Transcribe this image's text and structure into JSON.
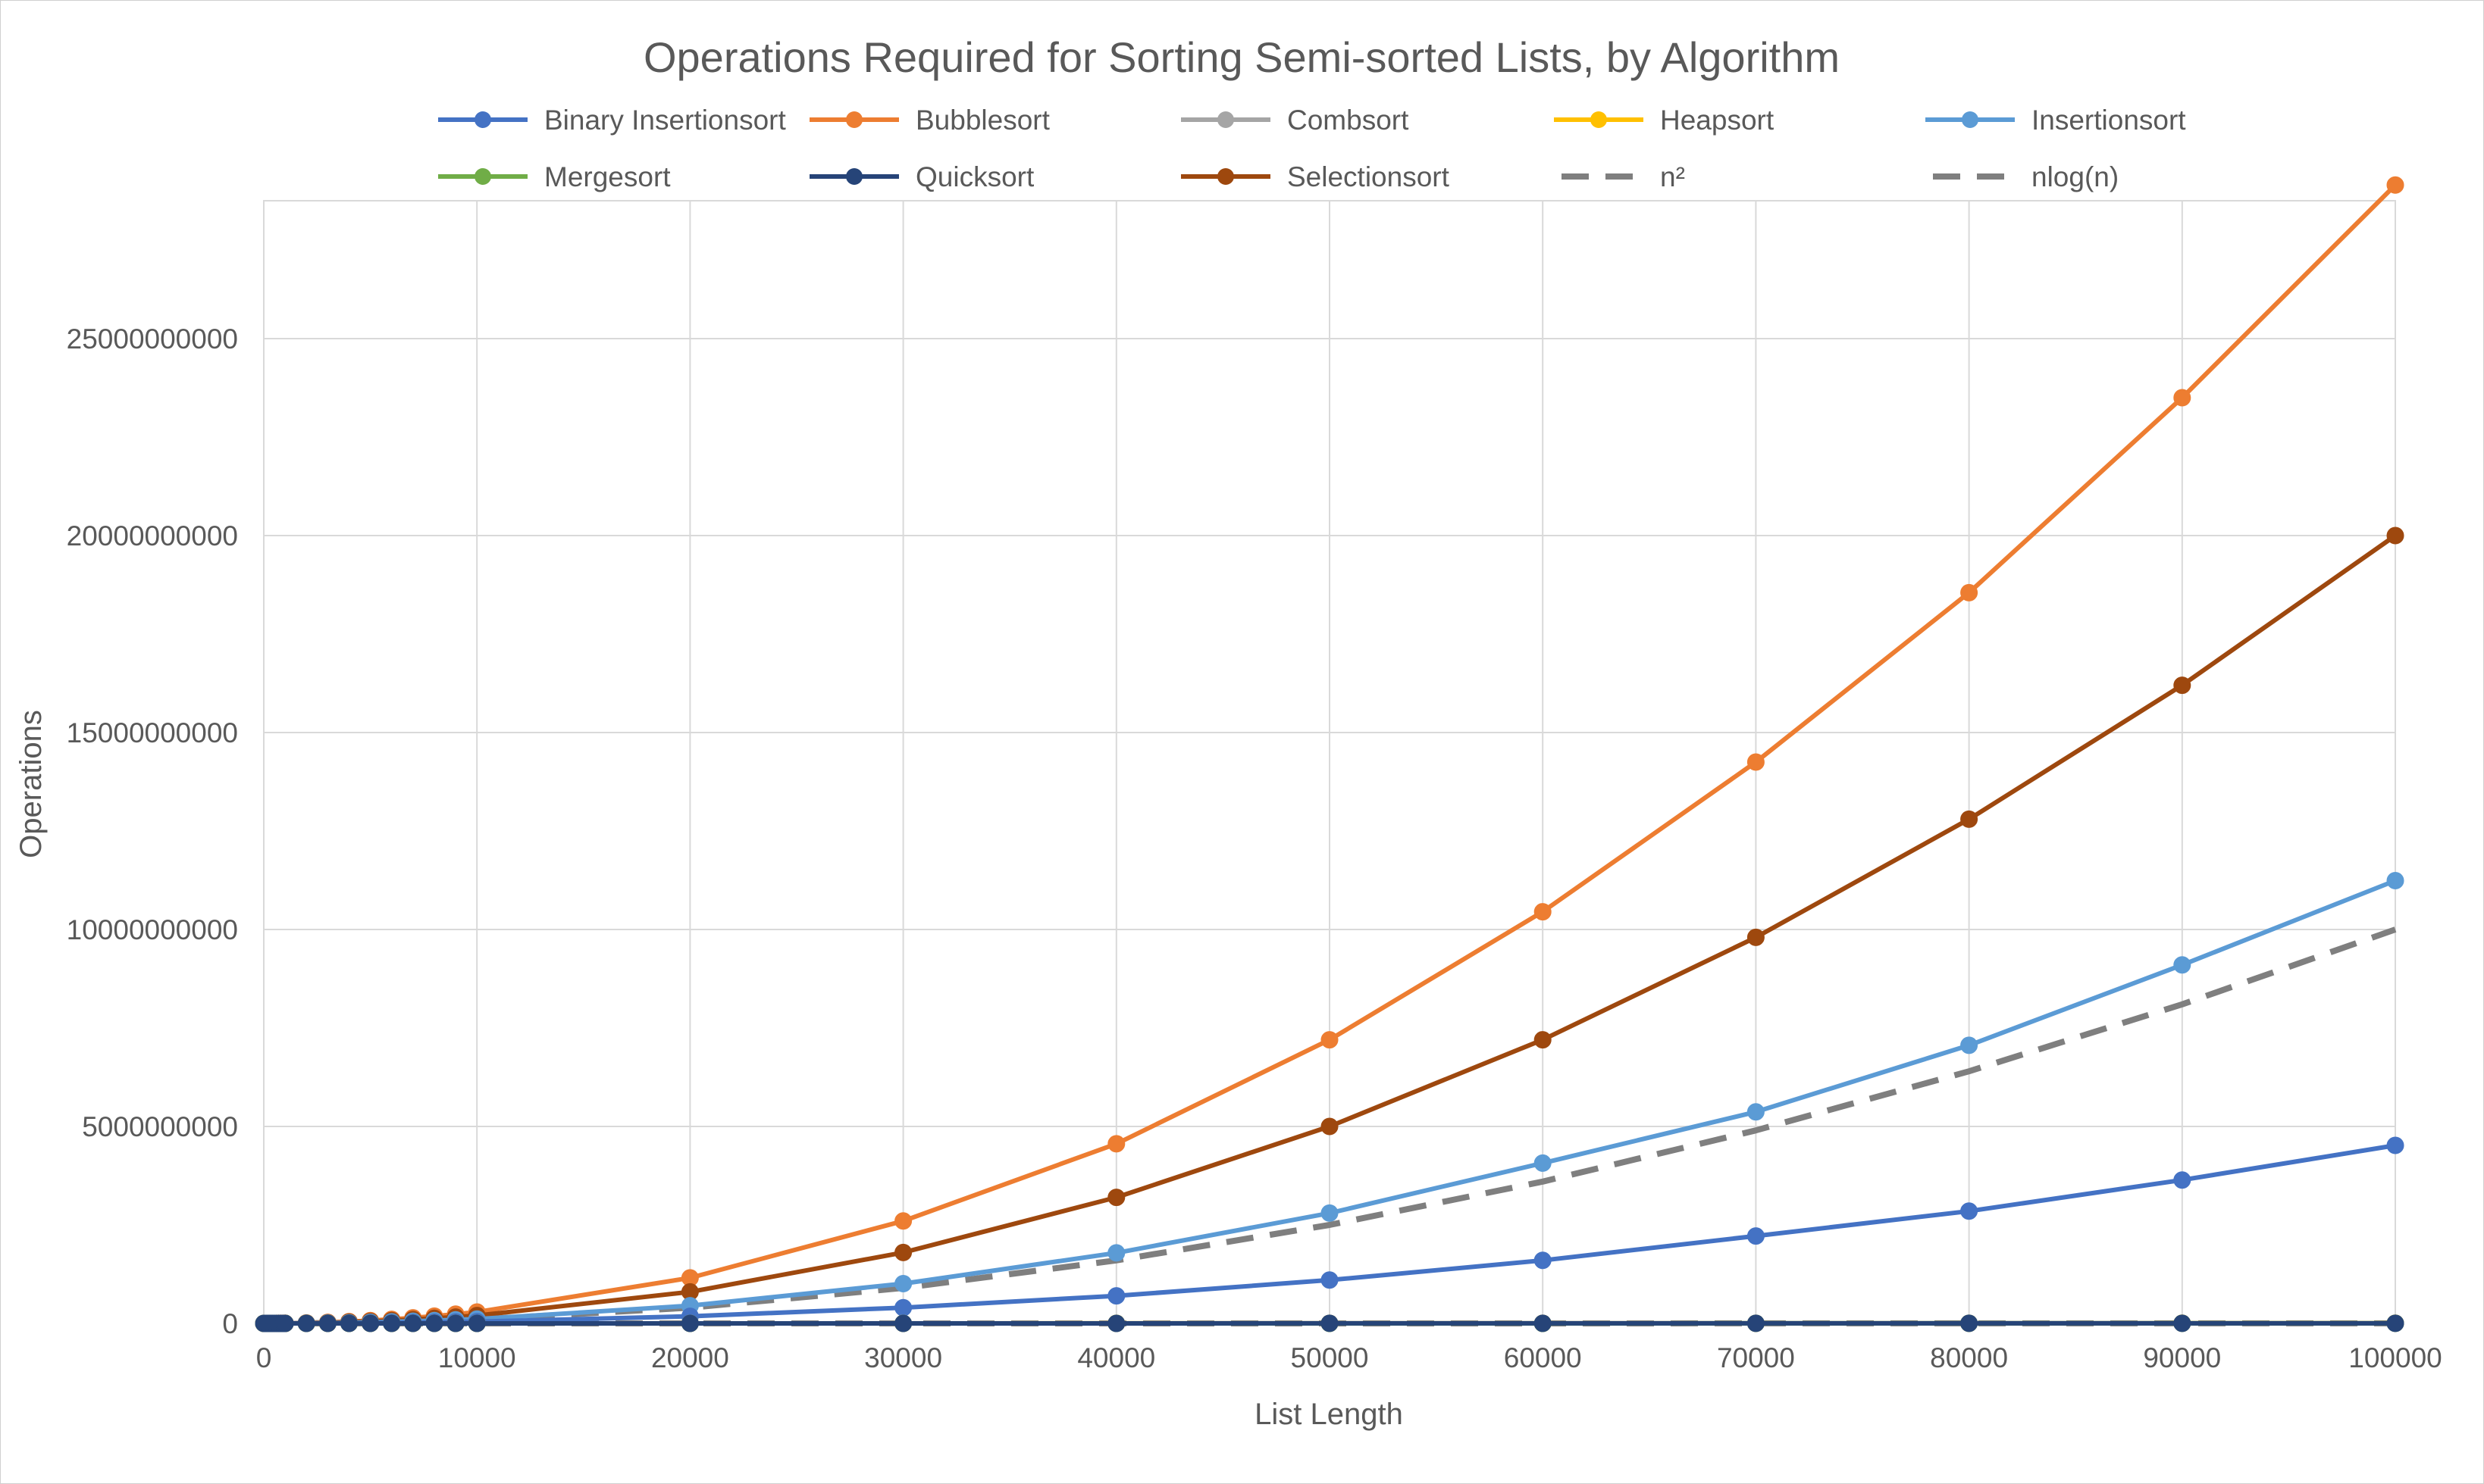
{
  "chart_data": {
    "type": "line",
    "title": "Operations Required for Sorting Semi-sorted Lists, by Algorithm",
    "xlabel": "List Length",
    "ylabel": "Operations",
    "xlim": [
      0,
      100000
    ],
    "ylim": [
      0,
      28500000000
    ],
    "x_ticks": [
      0,
      10000,
      20000,
      30000,
      40000,
      50000,
      60000,
      70000,
      80000,
      90000,
      100000
    ],
    "x_tick_labels": [
      "0",
      "10000",
      "20000",
      "30000",
      "40000",
      "50000",
      "60000",
      "70000",
      "80000",
      "90000",
      "100000"
    ],
    "y_ticks": [
      0,
      5000000000,
      10000000000,
      15000000000,
      20000000000,
      25000000000
    ],
    "y_tick_labels": [
      "0",
      "5000000000",
      "10000000000",
      "15000000000",
      "20000000000",
      "25000000000"
    ],
    "grid": true,
    "legend_position": "top",
    "x": [
      0,
      100,
      200,
      300,
      400,
      500,
      600,
      700,
      800,
      900,
      1000,
      2000,
      3000,
      4000,
      5000,
      6000,
      7000,
      8000,
      9000,
      10000,
      20000,
      30000,
      40000,
      50000,
      60000,
      70000,
      80000,
      90000,
      100000
    ],
    "series": [
      {
        "name": "Binary Insertionsort",
        "color": "#4472C4",
        "dashed": false,
        "markers": true,
        "values": [
          0,
          2000,
          8000,
          18000,
          32000,
          50000,
          72000,
          98000,
          128000,
          162000,
          200000,
          1000000,
          3000000,
          7000000,
          12000000,
          17000000,
          23000000,
          30000000,
          38000000,
          45000000,
          180000000,
          400000000,
          700000000,
          1100000000,
          1600000000,
          2220000000,
          2850000000,
          3640000000,
          4520000000
        ]
      },
      {
        "name": "Bubblesort",
        "color": "#ED7D31",
        "dashed": false,
        "markers": true,
        "values": [
          0,
          29000,
          115000,
          260000,
          460000,
          720000,
          1040000,
          1410000,
          1850000,
          2340000,
          2890000,
          11600000,
          26000000,
          46000000,
          72000000,
          104000000,
          142000000,
          185000000,
          234000000,
          289000000,
          1155000000,
          2600000000,
          4560000000,
          7200000000,
          10450000000,
          14250000000,
          18550000000,
          23500000000,
          28900000000
        ]
      },
      {
        "name": "Combsort",
        "color": "#A5A5A5",
        "dashed": false,
        "markers": true,
        "values": [
          0,
          1500,
          3500,
          5500,
          7500,
          9800,
          12000,
          14500,
          17000,
          19500,
          22000,
          49000,
          77000,
          107000,
          137000,
          167000,
          198000,
          230000,
          262000,
          295000,
          640000,
          1000000,
          1380000,
          1770000,
          2170000,
          2570000,
          2980000,
          3400000,
          3800000
        ]
      },
      {
        "name": "Heapsort",
        "color": "#FFC000",
        "dashed": false,
        "markers": true,
        "values": [
          0,
          1300,
          3000,
          4800,
          6700,
          8700,
          10800,
          12800,
          15000,
          17200,
          19400,
          43000,
          68000,
          95000,
          122000,
          150000,
          178000,
          207000,
          236000,
          266000,
          570000,
          900000,
          1240000,
          1590000,
          1950000,
          2320000,
          2690000,
          3060000,
          3440000
        ]
      },
      {
        "name": "Insertionsort",
        "color": "#5B9BD5",
        "dashed": false,
        "markers": true,
        "values": [
          0,
          11000,
          45000,
          100000,
          180000,
          280000,
          400000,
          550000,
          720000,
          910000,
          1120000,
          4500000,
          10100000,
          18000000,
          28000000,
          40400000,
          55000000,
          72000000,
          91000000,
          112000000,
          450000000,
          1010000000,
          1790000000,
          2800000000,
          4070000000,
          5370000000,
          7060000000,
          9100000000,
          11240000000
        ]
      },
      {
        "name": "Mergesort",
        "color": "#70AD47",
        "dashed": false,
        "markers": true,
        "values": [
          0,
          700,
          1500,
          2500,
          3500,
          4500,
          5600,
          6700,
          7800,
          8900,
          10000,
          22000,
          35000,
          48000,
          62000,
          76000,
          90000,
          104000,
          119000,
          134000,
          288000,
          451000,
          616000,
          784000,
          955000,
          1130000,
          1300000,
          1480000,
          1660000
        ]
      },
      {
        "name": "Quicksort",
        "color": "#264478",
        "dashed": false,
        "markers": true,
        "values": [
          0,
          900,
          2000,
          3200,
          4400,
          5700,
          7000,
          8400,
          9800,
          11200,
          12600,
          28000,
          44000,
          61000,
          78000,
          96000,
          114000,
          132000,
          150000,
          169000,
          365000,
          570000,
          780000,
          990000,
          1210000,
          1430000,
          1650000,
          1880000,
          2100000
        ]
      },
      {
        "name": "Selectionsort",
        "color": "#9E480E",
        "dashed": false,
        "markers": true,
        "values": [
          0,
          20000,
          80000,
          180000,
          320000,
          500000,
          720000,
          980000,
          1280000,
          1620000,
          2000000,
          8000000,
          18000000,
          32000000,
          50000000,
          72000000,
          98000000,
          128000000,
          162000000,
          200000000,
          800000000,
          1800000000,
          3200000000,
          5000000000,
          7200000000,
          9800000000,
          12800000000,
          16200000000,
          20000000000
        ]
      },
      {
        "name": "n²",
        "color": "#7F7F7F",
        "dashed": true,
        "markers": false,
        "values": [
          0,
          10000,
          40000,
          90000,
          160000,
          250000,
          360000,
          490000,
          640000,
          810000,
          1000000,
          4000000,
          9000000,
          16000000,
          25000000,
          36000000,
          49000000,
          64000000,
          81000000,
          100000000,
          400000000,
          900000000,
          1600000000,
          2500000000,
          3600000000,
          4900000000,
          6400000000,
          8100000000,
          10000000000
        ]
      },
      {
        "name": "nlog(n)",
        "color": "#7F7F7F",
        "dashed": true,
        "markers": false,
        "values": [
          0,
          664,
          1529,
          2469,
          3458,
          4483,
          5538,
          6616,
          7715,
          8832,
          9966,
          21932,
          34652,
          47863,
          61439,
          75304,
          89412,
          103726,
          118221,
          132877,
          285754,
          446180,
          611508,
          780482,
          952360,
          1126655,
          1303017,
          1481226,
          1660964
        ]
      }
    ]
  }
}
